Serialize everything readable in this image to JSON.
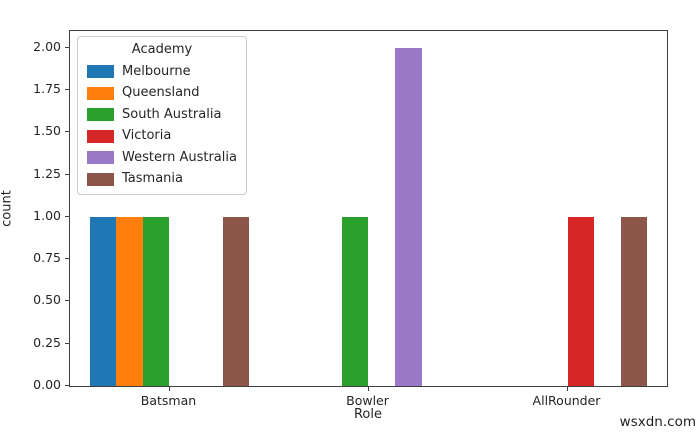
{
  "watermark": "wsxdn.com",
  "chart_data": {
    "type": "bar",
    "title": "",
    "xlabel": "Role",
    "ylabel": "count",
    "categories": [
      "Batsman",
      "Bowler",
      "AllRounder"
    ],
    "series": [
      {
        "name": "Melbourne",
        "color": "#1f77b4",
        "values": [
          1,
          0,
          0
        ]
      },
      {
        "name": "Queensland",
        "color": "#ff7f0e",
        "values": [
          1,
          0,
          0
        ]
      },
      {
        "name": "South Australia",
        "color": "#2ca02c",
        "values": [
          1,
          1,
          0
        ]
      },
      {
        "name": "Victoria",
        "color": "#d62728",
        "values": [
          0,
          0,
          1
        ]
      },
      {
        "name": "Western Australia",
        "color": "#9b79c9",
        "values": [
          0,
          2,
          0
        ]
      },
      {
        "name": "Tasmania",
        "color": "#8c564b",
        "values": [
          1,
          0,
          1
        ]
      }
    ],
    "ylim": [
      0,
      2.1
    ],
    "yticks": [
      0,
      0.25,
      0.5,
      0.75,
      1,
      1.25,
      1.5,
      1.75,
      2
    ],
    "ytick_decimals": 2,
    "legend": {
      "title": "Academy",
      "position": "upper left"
    },
    "grid": false,
    "bar_group_width_fraction": 0.8
  }
}
